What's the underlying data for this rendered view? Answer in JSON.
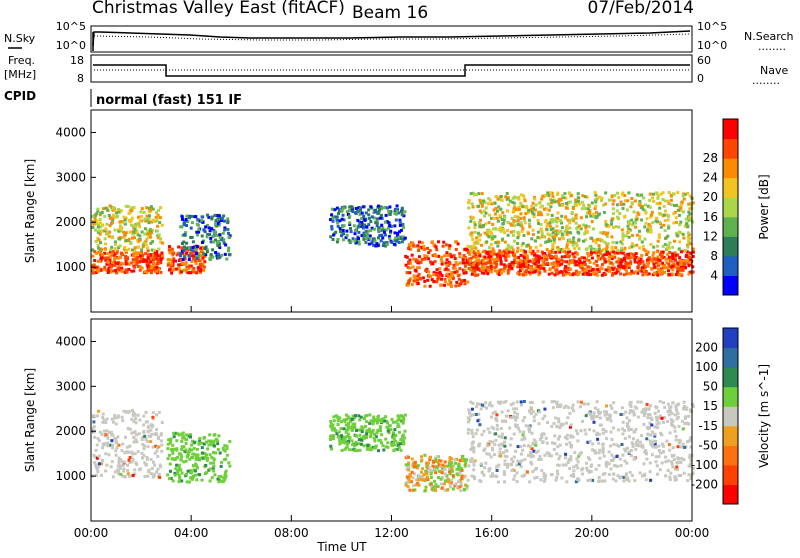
{
  "header": {
    "title": "Christmas Valley East (fitACF)",
    "beam": "Beam 16",
    "date": "07/Feb/2014"
  },
  "panels": {
    "nsky_label": "N.Sky",
    "freq_label_1": "Freq.",
    "freq_label_2": "[MHz]",
    "cpid_label": "CPID",
    "nsearch_label": "N.Search",
    "nave_label": "Nave",
    "nsky_ticks": [
      "10^5",
      "10^0"
    ],
    "nsearch_ticks": [
      "10^5",
      "10^0"
    ],
    "freq_ticks": [
      "18",
      "8"
    ],
    "nave_ticks": [
      "60",
      "0"
    ],
    "cpid_text": "normal (fast) 151 IF",
    "dotted_legend": "........"
  },
  "chart_data": [
    {
      "type": "heatmap",
      "name": "Power panel",
      "xlabel": "Time UT",
      "ylabel": "Slant Range [km]",
      "xlim": [
        0,
        24
      ],
      "ylim": [
        0,
        4500
      ],
      "y_ticks": [
        "1000",
        "2000",
        "3000",
        "4000"
      ],
      "colorbar": {
        "label": "Power [dB]",
        "ticks": [
          "4",
          "8",
          "12",
          "16",
          "20",
          "24",
          "28"
        ],
        "colors": [
          "#0000ff",
          "#1f5fbf",
          "#2e7d5a",
          "#5fb04f",
          "#a9d64a",
          "#f2c41f",
          "#ff8c00",
          "#ff4500",
          "#ff0000"
        ]
      },
      "features": [
        {
          "t": [
            0.0,
            2.8
          ],
          "r": [
            900,
            1400
          ],
          "level": "high"
        },
        {
          "t": [
            0.0,
            2.8
          ],
          "r": [
            1400,
            2400
          ],
          "level": "mid"
        },
        {
          "t": [
            3.0,
            4.5
          ],
          "r": [
            900,
            1500
          ],
          "level": "high"
        },
        {
          "t": [
            3.5,
            5.5
          ],
          "r": [
            1200,
            2200
          ],
          "level": "low"
        },
        {
          "t": [
            9.5,
            12.5
          ],
          "r": [
            1500,
            2400
          ],
          "level": "low"
        },
        {
          "t": [
            12.5,
            15.0
          ],
          "r": [
            600,
            1600
          ],
          "level": "high"
        },
        {
          "t": [
            15.0,
            24.0
          ],
          "r": [
            850,
            1400
          ],
          "level": "high"
        },
        {
          "t": [
            15.0,
            24.0
          ],
          "r": [
            1400,
            2700
          ],
          "level": "mid"
        }
      ]
    },
    {
      "type": "heatmap",
      "name": "Velocity panel",
      "xlabel": "Time UT",
      "ylabel": "Slant Range [km]",
      "xlim": [
        0,
        24
      ],
      "ylim": [
        0,
        4500
      ],
      "y_ticks": [
        "1000",
        "2000",
        "3000",
        "4000"
      ],
      "x_ticks": [
        "00:00",
        "04:00",
        "08:00",
        "12:00",
        "16:00",
        "20:00",
        "00:00"
      ],
      "colorbar": {
        "label": "Velocity [m s^-1]",
        "ticks": [
          "200",
          "100",
          "50",
          "15",
          "-15",
          "-50",
          "-100",
          "-200"
        ],
        "colors": [
          "#2040c0",
          "#2e6fa0",
          "#2e8a50",
          "#6fcf3a",
          "#c8c8c0",
          "#f0a020",
          "#ff7010",
          "#ff4000",
          "#ff0000"
        ]
      },
      "features": [
        {
          "t": [
            0.0,
            2.8
          ],
          "r": [
            1000,
            2500
          ],
          "vel": "ground"
        },
        {
          "t": [
            3.0,
            5.5
          ],
          "r": [
            900,
            2000
          ],
          "vel": "positive"
        },
        {
          "t": [
            9.5,
            12.5
          ],
          "r": [
            1600,
            2400
          ],
          "vel": "positive"
        },
        {
          "t": [
            12.5,
            15.0
          ],
          "r": [
            700,
            1500
          ],
          "vel": "mixed"
        },
        {
          "t": [
            15.0,
            24.0
          ],
          "r": [
            900,
            2700
          ],
          "vel": "ground"
        }
      ]
    }
  ]
}
